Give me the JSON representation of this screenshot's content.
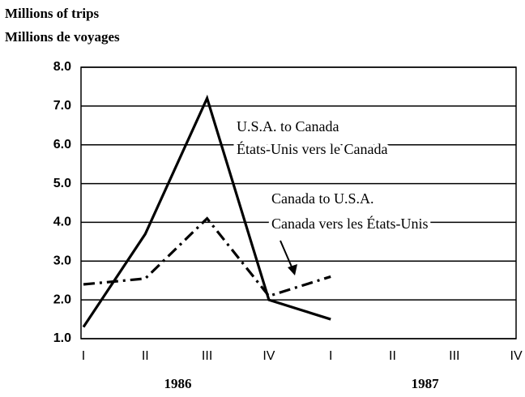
{
  "chart_data": {
    "type": "line",
    "ylabel": [
      "Millions of trips",
      "Millions de voyages"
    ],
    "categories": [
      "I",
      "II",
      "III",
      "IV",
      "I",
      "II",
      "III",
      "IV"
    ],
    "groups": [
      "1986",
      "1987"
    ],
    "series": [
      {
        "name": "U.S.A. to Canada",
        "name_fr": "États-Unis vers le Canada",
        "color": "#000000",
        "dash": "solid",
        "values": [
          1.3,
          3.7,
          7.2,
          2.0,
          1.5,
          null,
          null,
          null
        ]
      },
      {
        "name": "Canada to U.S.A.",
        "name_fr": "Canada vers les États-Unis",
        "color": "#000000",
        "dash": "dashdot",
        "values": [
          2.4,
          2.55,
          4.1,
          2.1,
          2.6,
          null,
          null,
          null
        ]
      }
    ],
    "ylim": [
      1,
      8
    ],
    "yticks": [
      {
        "value": 1,
        "label": "1.0"
      },
      {
        "value": 2,
        "label": "2.0"
      },
      {
        "value": 3,
        "label": "3.0"
      },
      {
        "value": 4,
        "label": "4.0"
      },
      {
        "value": 5,
        "label": "5.0"
      },
      {
        "value": 6,
        "label": "6.0"
      },
      {
        "value": 7,
        "label": "7.0"
      },
      {
        "value": 8,
        "label": "8.0"
      }
    ],
    "grid": true
  }
}
